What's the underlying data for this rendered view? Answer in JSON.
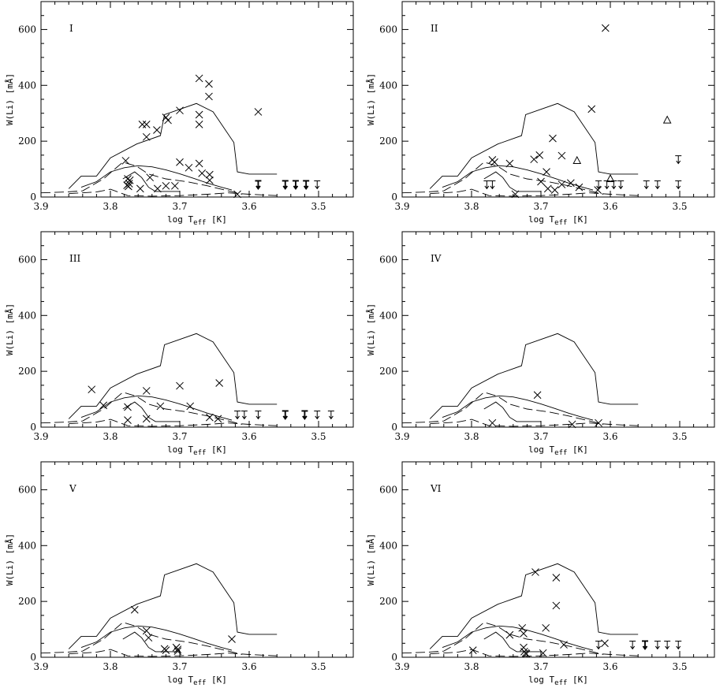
{
  "chart_data": [
    {
      "type": "scatter",
      "panel": "I",
      "xlabel": "log T_eff [K]",
      "ylabel": "W(Li) [mÅ]",
      "xlim": [
        3.9,
        3.45
      ],
      "ylim": [
        0,
        700
      ],
      "x_ticks": [
        "3.9",
        "3.8",
        "3.7",
        "3.6",
        "3.5"
      ],
      "y_ticks": [
        "0",
        "200",
        "400",
        "600"
      ],
      "detections": [
        [
          3.778,
          130
        ],
        [
          3.775,
          65
        ],
        [
          3.773,
          48
        ],
        [
          3.772,
          60
        ],
        [
          3.776,
          42
        ],
        [
          3.774,
          38
        ],
        [
          3.754,
          260
        ],
        [
          3.748,
          260
        ],
        [
          3.748,
          215
        ],
        [
          3.743,
          70
        ],
        [
          3.757,
          30
        ],
        [
          3.733,
          240
        ],
        [
          3.732,
          30
        ],
        [
          3.72,
          285
        ],
        [
          3.72,
          40
        ],
        [
          3.717,
          275
        ],
        [
          3.707,
          40
        ],
        [
          3.7,
          310
        ],
        [
          3.7,
          125
        ],
        [
          3.687,
          105
        ],
        [
          3.672,
          425
        ],
        [
          3.672,
          295
        ],
        [
          3.672,
          260
        ],
        [
          3.672,
          120
        ],
        [
          3.668,
          85
        ],
        [
          3.658,
          405
        ],
        [
          3.658,
          360
        ],
        [
          3.657,
          80
        ],
        [
          3.657,
          60
        ],
        [
          3.617,
          10
        ],
        [
          3.587,
          305
        ]
      ],
      "upper_limits": [
        {
          "x": 3.587,
          "y": 58,
          "bold": true
        },
        {
          "x": 3.548,
          "y": 58,
          "bold": true
        },
        {
          "x": 3.533,
          "y": 58,
          "bold": true
        },
        {
          "x": 3.518,
          "y": 58,
          "bold": true
        },
        {
          "x": 3.502,
          "y": 58,
          "bold": false
        }
      ],
      "triangles": []
    },
    {
      "type": "scatter",
      "panel": "II",
      "xlabel": "log T_eff [K]",
      "ylabel": "W(Li) [mÅ]",
      "xlim": [
        3.9,
        3.45
      ],
      "ylim": [
        0,
        700
      ],
      "x_ticks": [
        "3.9",
        "3.8",
        "3.7",
        "3.6",
        "3.5"
      ],
      "y_ticks": [
        "0",
        "200",
        "400",
        "600"
      ],
      "detections": [
        [
          3.77,
          133
        ],
        [
          3.767,
          125
        ],
        [
          3.745,
          120
        ],
        [
          3.737,
          10
        ],
        [
          3.71,
          135
        ],
        [
          3.702,
          150
        ],
        [
          3.7,
          55
        ],
        [
          3.692,
          90
        ],
        [
          3.69,
          30
        ],
        [
          3.683,
          210
        ],
        [
          3.68,
          25
        ],
        [
          3.67,
          148
        ],
        [
          3.67,
          45
        ],
        [
          3.657,
          50
        ],
        [
          3.645,
          35
        ],
        [
          3.627,
          315
        ],
        [
          3.618,
          25
        ],
        [
          3.607,
          605
        ]
      ],
      "upper_limits": [
        {
          "x": 3.778,
          "y": 58,
          "bold": false
        },
        {
          "x": 3.77,
          "y": 58,
          "bold": false
        },
        {
          "x": 3.617,
          "y": 58,
          "bold": false
        },
        {
          "x": 3.605,
          "y": 58,
          "bold": false
        },
        {
          "x": 3.595,
          "y": 58,
          "bold": false
        },
        {
          "x": 3.585,
          "y": 58,
          "bold": false
        },
        {
          "x": 3.548,
          "y": 58,
          "bold": false
        },
        {
          "x": 3.532,
          "y": 58,
          "bold": false
        },
        {
          "x": 3.502,
          "y": 58,
          "bold": false
        },
        {
          "x": 3.502,
          "y": 148,
          "bold": false
        }
      ],
      "triangles": [
        [
          3.648,
          130
        ],
        [
          3.6,
          65
        ],
        [
          3.518,
          275
        ]
      ]
    },
    {
      "type": "scatter",
      "panel": "III",
      "xlabel": "log T_eff [K]",
      "ylabel": "W(Li) [mÅ]",
      "xlim": [
        3.9,
        3.45
      ],
      "ylim": [
        0,
        700
      ],
      "x_ticks": [
        "3.9",
        "3.8",
        "3.7",
        "3.6",
        "3.5"
      ],
      "y_ticks": [
        "0",
        "200",
        "400",
        "600"
      ],
      "detections": [
        [
          3.827,
          135
        ],
        [
          3.81,
          78
        ],
        [
          3.775,
          72
        ],
        [
          3.775,
          25
        ],
        [
          3.748,
          130
        ],
        [
          3.748,
          30
        ],
        [
          3.728,
          75
        ],
        [
          3.7,
          148
        ],
        [
          3.685,
          75
        ],
        [
          3.657,
          35
        ],
        [
          3.645,
          30
        ],
        [
          3.643,
          158
        ]
      ],
      "upper_limits": [
        {
          "x": 3.617,
          "y": 58,
          "bold": false
        },
        {
          "x": 3.607,
          "y": 58,
          "bold": false
        },
        {
          "x": 3.587,
          "y": 58,
          "bold": false
        },
        {
          "x": 3.548,
          "y": 58,
          "bold": true
        },
        {
          "x": 3.52,
          "y": 58,
          "bold": true
        },
        {
          "x": 3.502,
          "y": 58,
          "bold": false
        },
        {
          "x": 3.482,
          "y": 58,
          "bold": false
        }
      ],
      "triangles": []
    },
    {
      "type": "scatter",
      "panel": "IV",
      "xlabel": "log T_eff [K]",
      "ylabel": "W(Li) [mÅ]",
      "xlim": [
        3.9,
        3.45
      ],
      "ylim": [
        0,
        700
      ],
      "x_ticks": [
        "3.9",
        "3.8",
        "3.7",
        "3.6",
        "3.5"
      ],
      "y_ticks": [
        "0",
        "200",
        "400",
        "600"
      ],
      "detections": [
        [
          3.77,
          15
        ],
        [
          3.705,
          115
        ],
        [
          3.655,
          10
        ],
        [
          3.617,
          15
        ]
      ],
      "upper_limits": [],
      "triangles": []
    },
    {
      "type": "scatter",
      "panel": "V",
      "xlabel": "log T_eff [K]",
      "ylabel": "W(Li) [mÅ]",
      "xlim": [
        3.9,
        3.45
      ],
      "ylim": [
        0,
        700
      ],
      "x_ticks": [
        "3.9",
        "3.8",
        "3.7",
        "3.6",
        "3.5"
      ],
      "y_ticks": [
        "0",
        "200",
        "400",
        "600"
      ],
      "detections": [
        [
          3.765,
          170
        ],
        [
          3.748,
          95
        ],
        [
          3.745,
          70
        ],
        [
          3.722,
          30
        ],
        [
          3.72,
          25
        ],
        [
          3.705,
          35
        ],
        [
          3.703,
          28
        ],
        [
          3.703,
          22
        ],
        [
          3.625,
          65
        ]
      ],
      "upper_limits": [],
      "triangles": []
    },
    {
      "type": "scatter",
      "panel": "VI",
      "xlabel": "log T_eff [K]",
      "ylabel": "W(Li) [mÅ]",
      "xlim": [
        3.9,
        3.45
      ],
      "ylim": [
        0,
        700
      ],
      "x_ticks": [
        "3.9",
        "3.8",
        "3.7",
        "3.6",
        "3.5"
      ],
      "y_ticks": [
        "0",
        "200",
        "400",
        "600"
      ],
      "detections": [
        [
          3.798,
          25
        ],
        [
          3.745,
          80
        ],
        [
          3.727,
          105
        ],
        [
          3.725,
          85
        ],
        [
          3.725,
          35
        ],
        [
          3.724,
          20
        ],
        [
          3.722,
          15
        ],
        [
          3.721,
          12
        ],
        [
          3.708,
          305
        ],
        [
          3.697,
          15
        ],
        [
          3.693,
          105
        ],
        [
          3.678,
          285
        ],
        [
          3.678,
          185
        ],
        [
          3.667,
          45
        ],
        [
          3.608,
          50
        ]
      ],
      "upper_limits": [
        {
          "x": 3.617,
          "y": 58,
          "bold": false
        },
        {
          "x": 3.568,
          "y": 58,
          "bold": false
        },
        {
          "x": 3.55,
          "y": 58,
          "bold": true
        },
        {
          "x": 3.532,
          "y": 58,
          "bold": false
        },
        {
          "x": 3.518,
          "y": 58,
          "bold": false
        },
        {
          "x": 3.502,
          "y": 58,
          "bold": false
        }
      ],
      "triangles": []
    }
  ],
  "model_curves": {
    "solid_envelope": [
      [
        3.86,
        30
      ],
      [
        3.842,
        75
      ],
      [
        3.82,
        75
      ],
      [
        3.8,
        140
      ],
      [
        3.762,
        190
      ],
      [
        3.728,
        220
      ],
      [
        3.722,
        295
      ],
      [
        3.676,
        335
      ],
      [
        3.652,
        305
      ],
      [
        3.622,
        195
      ],
      [
        3.617,
        90
      ],
      [
        3.6,
        82
      ],
      [
        3.56,
        82
      ]
    ],
    "solid_inner": [
      [
        3.842,
        35
      ],
      [
        3.82,
        55
      ],
      [
        3.8,
        90
      ],
      [
        3.78,
        105
      ],
      [
        3.76,
        112
      ],
      [
        3.74,
        108
      ],
      [
        3.72,
        97
      ],
      [
        3.7,
        83
      ],
      [
        3.68,
        67
      ],
      [
        3.66,
        50
      ],
      [
        3.64,
        35
      ],
      [
        3.625,
        25
      ]
    ],
    "dashed_outer": [
      [
        3.9,
        15
      ],
      [
        3.865,
        18
      ],
      [
        3.84,
        22
      ],
      [
        3.81,
        65
      ],
      [
        3.782,
        125
      ],
      [
        3.762,
        110
      ],
      [
        3.745,
        82
      ],
      [
        3.72,
        65
      ],
      [
        3.69,
        55
      ],
      [
        3.66,
        40
      ],
      [
        3.63,
        22
      ],
      [
        3.61,
        10
      ]
    ],
    "dashed_low": [
      [
        3.86,
        12
      ],
      [
        3.82,
        18
      ],
      [
        3.8,
        28
      ],
      [
        3.775,
        5
      ],
      [
        3.74,
        3
      ],
      [
        3.7,
        5
      ],
      [
        3.66,
        10
      ],
      [
        3.63,
        15
      ],
      [
        3.6,
        10
      ],
      [
        3.56,
        5
      ]
    ],
    "solid_bump": [
      [
        3.782,
        65
      ],
      [
        3.765,
        90
      ],
      [
        3.755,
        70
      ],
      [
        3.745,
        35
      ],
      [
        3.735,
        20
      ],
      [
        3.715,
        20
      ],
      [
        3.7,
        20
      ]
    ]
  }
}
